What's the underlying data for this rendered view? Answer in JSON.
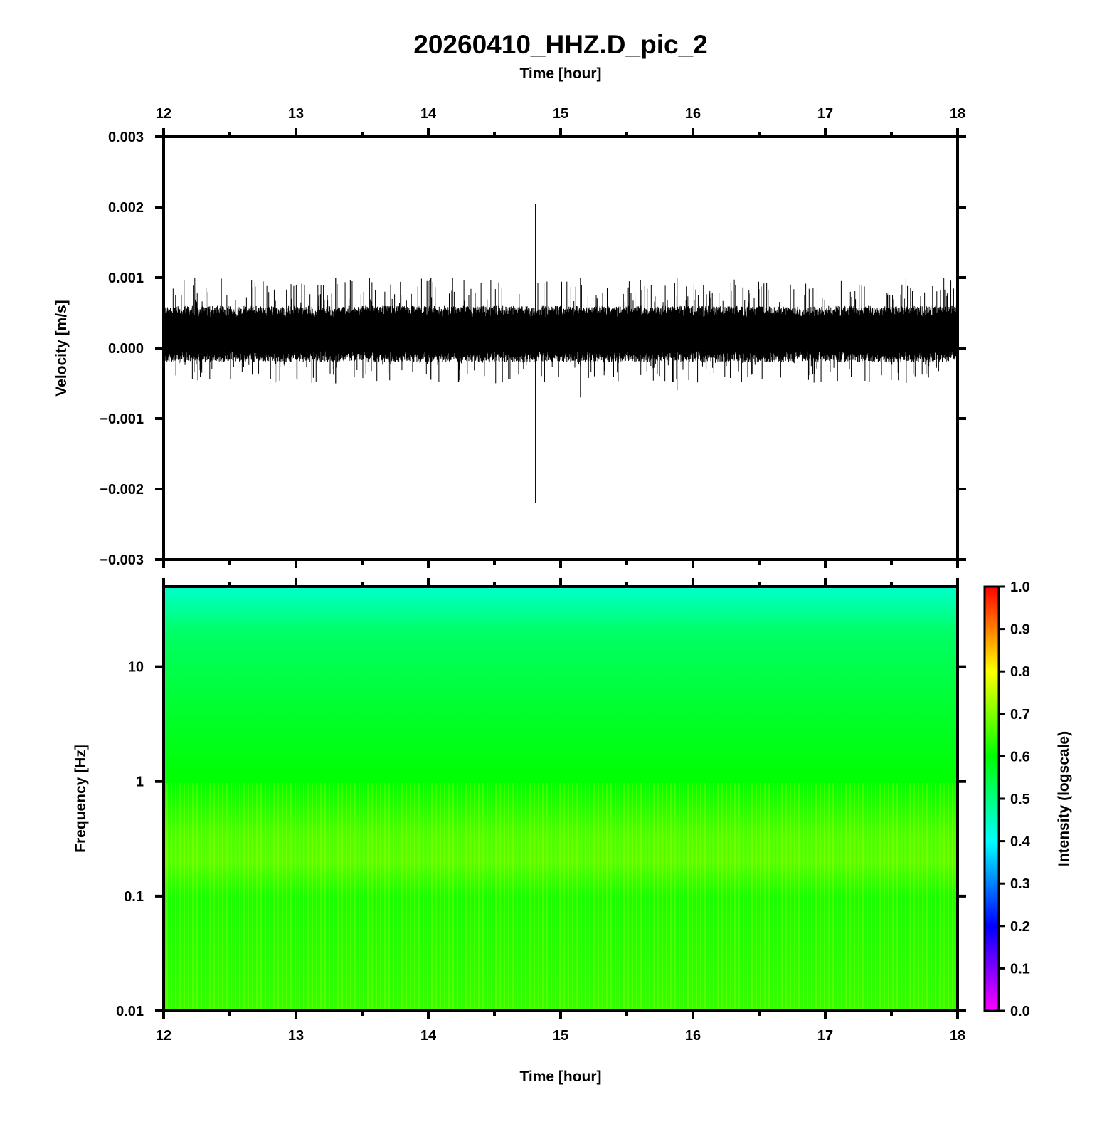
{
  "chart_data": [
    {
      "type": "line",
      "title": "20260410_HHZ.D_pic_2",
      "top_xlabel": "Time [hour]",
      "ylabel": "Velocity [m/s]",
      "xlim": [
        12,
        18
      ],
      "ylim": [
        -0.003,
        0.003
      ],
      "x_ticks": [
        "12",
        "13",
        "14",
        "15",
        "16",
        "17",
        "18"
      ],
      "y_ticks": [
        "0.003",
        "0.002",
        "0.001",
        "0.000",
        "−0.001",
        "−0.002",
        "−0.003"
      ],
      "grid": false,
      "trace_color": "#000000",
      "series": [
        {
          "description_of_trace": "continuous seismic noise centred near 0.0002 m/s",
          "noise_band_typical": [
            -0.0002,
            0.0006
          ],
          "noise_peaks_typical": [
            -0.0005,
            0.001
          ],
          "spikes": [
            {
              "x": 14.81,
              "ymin": -0.0022,
              "ymax": 0.00205
            },
            {
              "x": 15.15,
              "ymin": -0.0007,
              "ymax": 0.001
            },
            {
              "x": 13.3,
              "ymin": -0.0005,
              "ymax": 0.001
            },
            {
              "x": 14.02,
              "ymin": -0.00045,
              "ymax": 0.001
            },
            {
              "x": 15.88,
              "ymin": -0.0006,
              "ymax": 0.001
            }
          ]
        }
      ]
    },
    {
      "type": "heatmap",
      "xlabel": "Time [hour]",
      "ylabel": "Frequency [Hz]",
      "xlim": [
        12,
        18
      ],
      "ylim": [
        0.01,
        50
      ],
      "y_scale": "log",
      "x_ticks": [
        "12",
        "13",
        "14",
        "15",
        "16",
        "17",
        "18"
      ],
      "y_ticks": [
        "10",
        "1",
        "0.1",
        "0.01"
      ],
      "colorbar": {
        "label": "Intensity (logscale)",
        "range": [
          0.0,
          1.0
        ],
        "ticks": [
          "1.0",
          "0.9",
          "0.8",
          "0.7",
          "0.6",
          "0.5",
          "0.4",
          "0.3",
          "0.2",
          "0.1",
          "0.0"
        ],
        "colormap": [
          "#ff00ff",
          "#0000ff",
          "#00ffff",
          "#00ff00",
          "#ffff00",
          "#ff0000"
        ]
      },
      "intensity_profile": [
        {
          "frequency_hz": 50,
          "intensity": 0.44
        },
        {
          "frequency_hz": 20,
          "intensity": 0.52
        },
        {
          "frequency_hz": 5,
          "intensity": 0.56
        },
        {
          "frequency_hz": 1,
          "intensity": 0.6
        },
        {
          "frequency_hz": 0.35,
          "intensity": 0.66
        },
        {
          "frequency_hz": 0.2,
          "intensity": 0.67
        },
        {
          "frequency_hz": 0.1,
          "intensity": 0.62
        },
        {
          "frequency_hz": 0.01,
          "intensity": 0.64
        }
      ]
    }
  ]
}
